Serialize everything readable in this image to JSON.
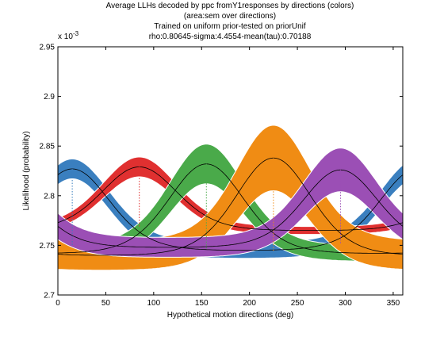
{
  "chart_data": {
    "type": "area",
    "title": [
      "Average LLHs decoded by ppc fromY1responses by directions (colors)",
      "(area:sem over directions)",
      "Trained on uniform prior-tested on priorUnif",
      "rho:0.80645-sigma:4.4554-mean(tau):0.70188"
    ],
    "xlabel": "Hypothetical motion directions (deg)",
    "ylabel": "Likelihood (probability)",
    "xlim": [
      0,
      360
    ],
    "ylim": [
      0.0027,
      0.00295
    ],
    "y_exponent_label": "x 10",
    "y_exponent_power": "-3",
    "x_ticks": [
      {
        "value": 0,
        "label": "0"
      },
      {
        "value": 50,
        "label": "50"
      },
      {
        "value": 100,
        "label": "100"
      },
      {
        "value": 150,
        "label": "150"
      },
      {
        "value": 200,
        "label": "200"
      },
      {
        "value": 250,
        "label": "250"
      },
      {
        "value": 300,
        "label": "300"
      },
      {
        "value": 350,
        "label": "350"
      }
    ],
    "y_ticks": [
      {
        "value": 0.0027,
        "label": "2.7"
      },
      {
        "value": 0.00275,
        "label": "2.75"
      },
      {
        "value": 0.0028,
        "label": "2.8"
      },
      {
        "value": 0.00285,
        "label": "2.85"
      },
      {
        "value": 0.0029,
        "label": "2.9"
      },
      {
        "value": 0.00295,
        "label": "2.95"
      }
    ],
    "grid": false,
    "legend": "none",
    "series": [
      {
        "color": "#3a7fbf",
        "preferred_direction": 15,
        "peak": 0.002827,
        "trough": 0.002745,
        "sem_peak": 1e-05,
        "sem_trough": 8e-06
      },
      {
        "color": "#e03030",
        "preferred_direction": 85,
        "peak": 0.002829,
        "trough": 0.002765,
        "sem_peak": 1e-05,
        "sem_trough": 4e-06
      },
      {
        "color": "#4aaa4a",
        "preferred_direction": 155,
        "peak": 0.002832,
        "trough": 0.002742,
        "sem_peak": 2e-05,
        "sem_trough": 8e-06
      },
      {
        "color": "#f08c14",
        "preferred_direction": 225,
        "peak": 0.002838,
        "trough": 0.00274,
        "sem_peak": 3.3e-05,
        "sem_trough": 1.5e-05
      },
      {
        "color": "#9b4fb5",
        "preferred_direction": 295,
        "peak": 0.002826,
        "trough": 0.002748,
        "sem_peak": 2.2e-05,
        "sem_trough": 1e-05
      }
    ]
  }
}
